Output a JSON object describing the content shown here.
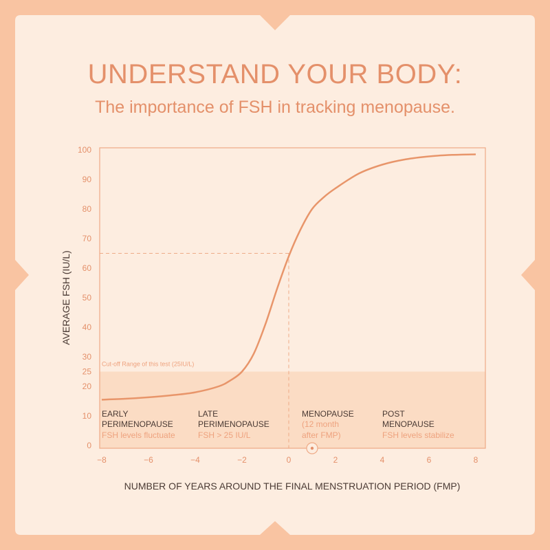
{
  "header": {
    "title": "UNDERSTAND YOUR BODY:",
    "subtitle": "The importance of FSH in tracking menopause."
  },
  "colors": {
    "outer": "#f9c4a2",
    "card": "#fdede0",
    "accent": "#e4906a",
    "band": "#fbdcc4",
    "text": "#4a3a34"
  },
  "chart_data": {
    "type": "line",
    "xlabel": "NUMBER OF YEARS AROUND THE FINAL MENSTRUATION PERIOD (FMP)",
    "ylabel": "AVERAGE FSH (IU/L)",
    "xlim": [
      -8,
      8
    ],
    "ylim": [
      0,
      100
    ],
    "xticks": [
      "-8",
      "-6",
      "-4",
      "-2",
      "0",
      "2",
      "4",
      "6",
      "8"
    ],
    "yticks": [
      "0",
      "10",
      "20",
      "25",
      "30",
      "40",
      "50",
      "60",
      "70",
      "80",
      "90",
      "100"
    ],
    "x": [
      -8,
      -7,
      -6,
      -5,
      -4,
      -3,
      -2.5,
      -2,
      -1.5,
      -1,
      -0.5,
      0,
      0.5,
      1,
      1.5,
      2,
      3,
      4,
      5,
      6,
      7,
      8
    ],
    "y": [
      15.5,
      15.8,
      16.3,
      17,
      18,
      20,
      22,
      25,
      31,
      41,
      53,
      64,
      73,
      80,
      84,
      87,
      92,
      95,
      96.8,
      97.8,
      98.3,
      98.5
    ],
    "cutoff": {
      "value": 25,
      "label": "Cut-off Range of this test (25IU/L)"
    },
    "reference_lines": {
      "x": 0,
      "y": 65
    },
    "marker_x": 1,
    "grid": false,
    "phases": [
      {
        "title1": "EARLY",
        "title2": "PERIMENOPAUSE",
        "desc": "FSH levels fluctuate"
      },
      {
        "title1": "LATE",
        "title2": "PERIMENOPAUSE",
        "desc": "FSH > 25 IU/L"
      },
      {
        "title1": "MENOPAUSE",
        "title2": "",
        "desc": "(12 month",
        "desc2": "after FMP)"
      },
      {
        "title1": "POST",
        "title2": "MENOPAUSE",
        "desc": "FSH levels stabilize"
      }
    ]
  }
}
